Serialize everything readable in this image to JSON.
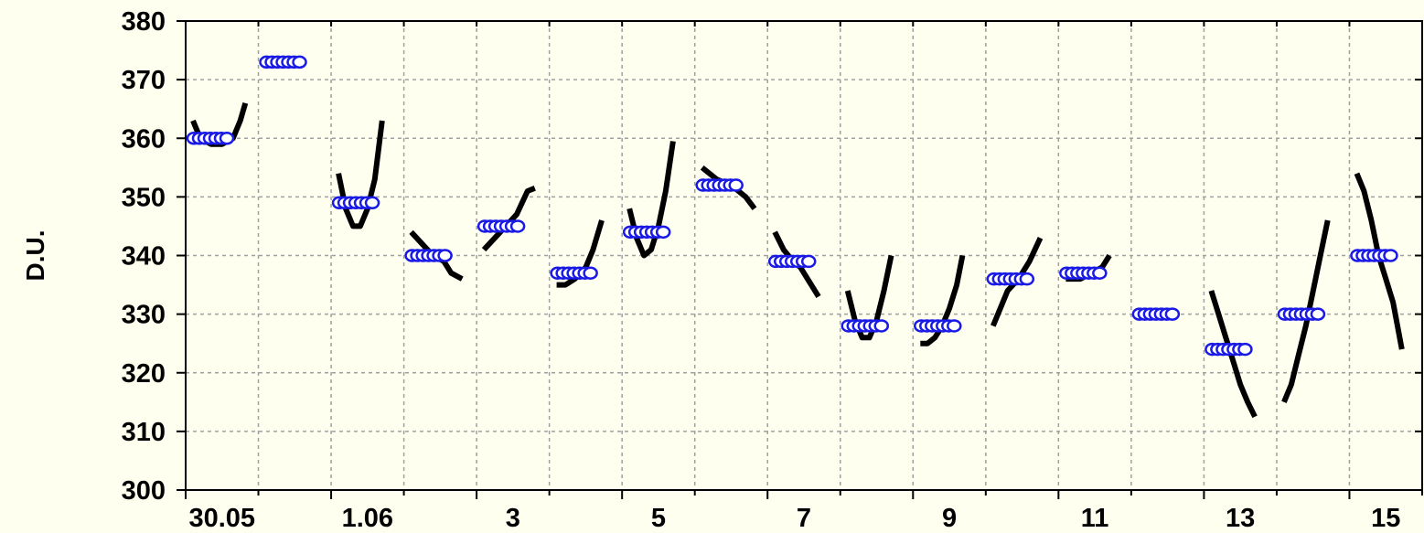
{
  "chart_data": {
    "type": "line",
    "title": "",
    "xlabel": "",
    "ylabel": "D.U.",
    "ylim": [
      300,
      380
    ],
    "yticks": [
      300,
      310,
      320,
      330,
      340,
      350,
      360,
      370,
      380
    ],
    "x_days": [
      "30.05",
      "31.05",
      "1.06",
      "2",
      "3",
      "4",
      "5",
      "6",
      "7",
      "8",
      "9",
      "10",
      "11",
      "12",
      "13",
      "14",
      "15"
    ],
    "x_tick_labels": [
      "30.05",
      "1.06",
      "3",
      "5",
      "7",
      "9",
      "11",
      "13",
      "15"
    ],
    "grid": true,
    "colors": {
      "background": "#fffff0",
      "line": "#000000",
      "marker_fill": "#ffffff",
      "marker_edge": "#1a1ae6",
      "grid": "#a0a0a0"
    },
    "series": [
      {
        "marker": "circle-open",
        "values": [
          360,
          373,
          349,
          340,
          345,
          337,
          344,
          352,
          339,
          328,
          328,
          336,
          337,
          330,
          324,
          330,
          340
        ]
      },
      {
        "marker": "none",
        "segments": [
          [
            [
              0.0,
              363
            ],
            [
              0.1,
              360
            ],
            [
              0.25,
              359
            ],
            [
              0.4,
              359
            ],
            [
              0.55,
              360
            ],
            [
              0.65,
              363
            ],
            [
              0.72,
              366
            ]
          ],
          [],
          [
            [
              0.0,
              354
            ],
            [
              0.1,
              348
            ],
            [
              0.2,
              345
            ],
            [
              0.3,
              345
            ],
            [
              0.4,
              348
            ],
            [
              0.5,
              353
            ],
            [
              0.6,
              363
            ]
          ],
          [
            [
              0.0,
              344
            ],
            [
              0.15,
              342
            ],
            [
              0.3,
              340
            ],
            [
              0.45,
              339
            ],
            [
              0.55,
              337
            ],
            [
              0.7,
              336
            ]
          ],
          [
            [
              0.0,
              341
            ],
            [
              0.15,
              343
            ],
            [
              0.3,
              345
            ],
            [
              0.45,
              347
            ],
            [
              0.6,
              351
            ],
            [
              0.7,
              351.5
            ]
          ],
          [
            [
              0.0,
              335
            ],
            [
              0.12,
              335
            ],
            [
              0.25,
              336
            ],
            [
              0.4,
              338
            ],
            [
              0.5,
              341
            ],
            [
              0.62,
              346
            ]
          ],
          [
            [
              0.0,
              348
            ],
            [
              0.1,
              343
            ],
            [
              0.2,
              340
            ],
            [
              0.3,
              341
            ],
            [
              0.4,
              345
            ],
            [
              0.5,
              351
            ],
            [
              0.6,
              359.5
            ]
          ],
          [
            [
              0.0,
              355
            ],
            [
              0.2,
              353
            ],
            [
              0.4,
              352
            ],
            [
              0.6,
              350
            ],
            [
              0.72,
              348
            ]
          ],
          [
            [
              0.0,
              344
            ],
            [
              0.12,
              341
            ],
            [
              0.25,
              339
            ],
            [
              0.35,
              338
            ],
            [
              0.45,
              336
            ],
            [
              0.6,
              333
            ]
          ],
          [
            [
              0.0,
              334
            ],
            [
              0.1,
              329
            ],
            [
              0.2,
              326
            ],
            [
              0.3,
              326
            ],
            [
              0.4,
              329
            ],
            [
              0.5,
              334
            ],
            [
              0.6,
              340
            ]
          ],
          [
            [
              0.0,
              325
            ],
            [
              0.1,
              325
            ],
            [
              0.2,
              326
            ],
            [
              0.3,
              328
            ],
            [
              0.4,
              331
            ],
            [
              0.5,
              335
            ],
            [
              0.58,
              340
            ]
          ],
          [
            [
              0.0,
              328
            ],
            [
              0.1,
              331
            ],
            [
              0.2,
              334
            ],
            [
              0.35,
              336
            ],
            [
              0.5,
              339
            ],
            [
              0.65,
              343
            ]
          ],
          [
            [
              0.0,
              336
            ],
            [
              0.2,
              336
            ],
            [
              0.35,
              337
            ],
            [
              0.5,
              338
            ],
            [
              0.6,
              340
            ]
          ],
          [],
          [
            [
              0.0,
              334
            ],
            [
              0.1,
              330
            ],
            [
              0.2,
              326
            ],
            [
              0.3,
              322
            ],
            [
              0.4,
              318
            ],
            [
              0.5,
              315
            ],
            [
              0.6,
              312.5
            ]
          ],
          [
            [
              0.0,
              315
            ],
            [
              0.1,
              318
            ],
            [
              0.2,
              323
            ],
            [
              0.3,
              328
            ],
            [
              0.4,
              334
            ],
            [
              0.5,
              340
            ],
            [
              0.6,
              346
            ]
          ],
          [
            [
              0.0,
              354
            ],
            [
              0.1,
              351
            ],
            [
              0.2,
              346
            ],
            [
              0.3,
              340
            ],
            [
              0.4,
              336
            ],
            [
              0.5,
              332
            ],
            [
              0.62,
              324
            ]
          ]
        ]
      }
    ]
  }
}
